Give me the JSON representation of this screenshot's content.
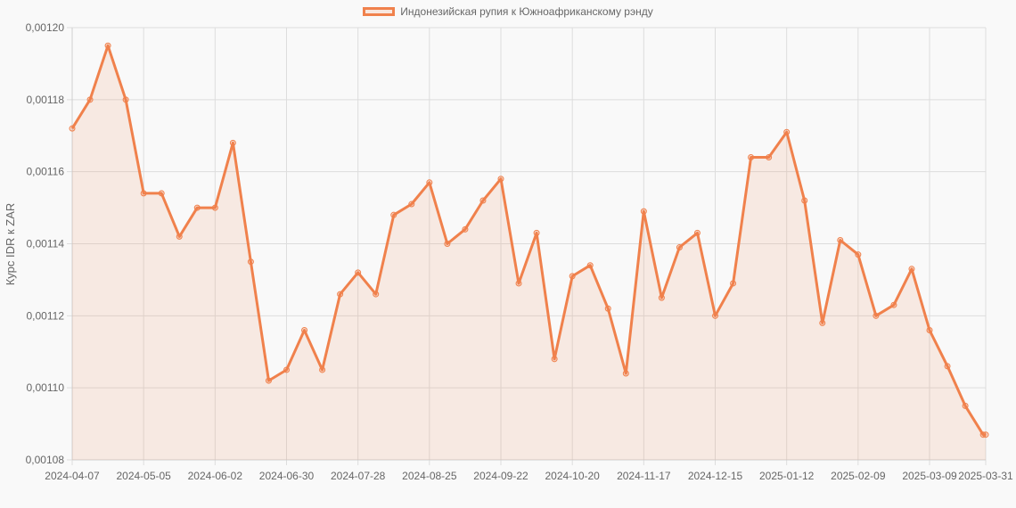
{
  "chart_data": {
    "type": "line",
    "title": "",
    "legend": [
      "Индонезийская рупия к Южноафриканскому рэнду"
    ],
    "legend_position": "top",
    "xlabel": "",
    "ylabel": "Курс IDR к ZAR",
    "ylim": [
      0.00108,
      0.0012
    ],
    "yticks": [
      "0,00108",
      "0,00110",
      "0,00112",
      "0,00114",
      "0,00116",
      "0,00118",
      "0,00120"
    ],
    "xticks": [
      "2024-04-07",
      "2024-05-05",
      "2024-06-02",
      "2024-06-30",
      "2024-07-28",
      "2024-08-25",
      "2024-09-22",
      "2024-10-20",
      "2024-11-17",
      "2024-12-15",
      "2025-01-12",
      "2025-02-09",
      "2025-03-09",
      "2025-03-31"
    ],
    "grid": true,
    "colors": {
      "line": "#f0814c",
      "fill": "rgba(240,129,76,0.13)",
      "grid": "#dddddd",
      "background": "#f9f9f9"
    },
    "series": [
      {
        "name": "Индонезийская рупия к Южноафриканскому рэнду",
        "x": [
          "2024-04-07",
          "2024-04-14",
          "2024-04-21",
          "2024-04-28",
          "2024-05-05",
          "2024-05-12",
          "2024-05-19",
          "2024-05-26",
          "2024-06-02",
          "2024-06-09",
          "2024-06-16",
          "2024-06-23",
          "2024-06-30",
          "2024-07-07",
          "2024-07-14",
          "2024-07-21",
          "2024-07-28",
          "2024-08-04",
          "2024-08-11",
          "2024-08-18",
          "2024-08-25",
          "2024-09-01",
          "2024-09-08",
          "2024-09-15",
          "2024-09-22",
          "2024-09-29",
          "2024-10-06",
          "2024-10-13",
          "2024-10-20",
          "2024-10-27",
          "2024-11-03",
          "2024-11-10",
          "2024-11-17",
          "2024-11-24",
          "2024-12-01",
          "2024-12-08",
          "2024-12-15",
          "2024-12-22",
          "2024-12-29",
          "2025-01-05",
          "2025-01-12",
          "2025-01-19",
          "2025-01-26",
          "2025-02-02",
          "2025-02-09",
          "2025-02-16",
          "2025-02-23",
          "2025-03-02",
          "2025-03-09",
          "2025-03-16",
          "2025-03-23",
          "2025-03-30",
          "2025-03-31"
        ],
        "values": [
          0.001172,
          0.00118,
          0.001195,
          0.00118,
          0.001154,
          0.001154,
          0.001142,
          0.00115,
          0.00115,
          0.001168,
          0.001135,
          0.001102,
          0.001105,
          0.001116,
          0.001105,
          0.001126,
          0.001132,
          0.001126,
          0.001148,
          0.001151,
          0.001157,
          0.00114,
          0.001144,
          0.001152,
          0.001158,
          0.001129,
          0.001143,
          0.001108,
          0.001131,
          0.001134,
          0.001122,
          0.001104,
          0.001149,
          0.001125,
          0.001139,
          0.001143,
          0.00112,
          0.001129,
          0.001164,
          0.001164,
          0.001171,
          0.001152,
          0.001118,
          0.001141,
          0.001137,
          0.00112,
          0.001123,
          0.001133,
          0.001116,
          0.001106,
          0.001095,
          0.001087,
          0.001087
        ]
      }
    ]
  }
}
